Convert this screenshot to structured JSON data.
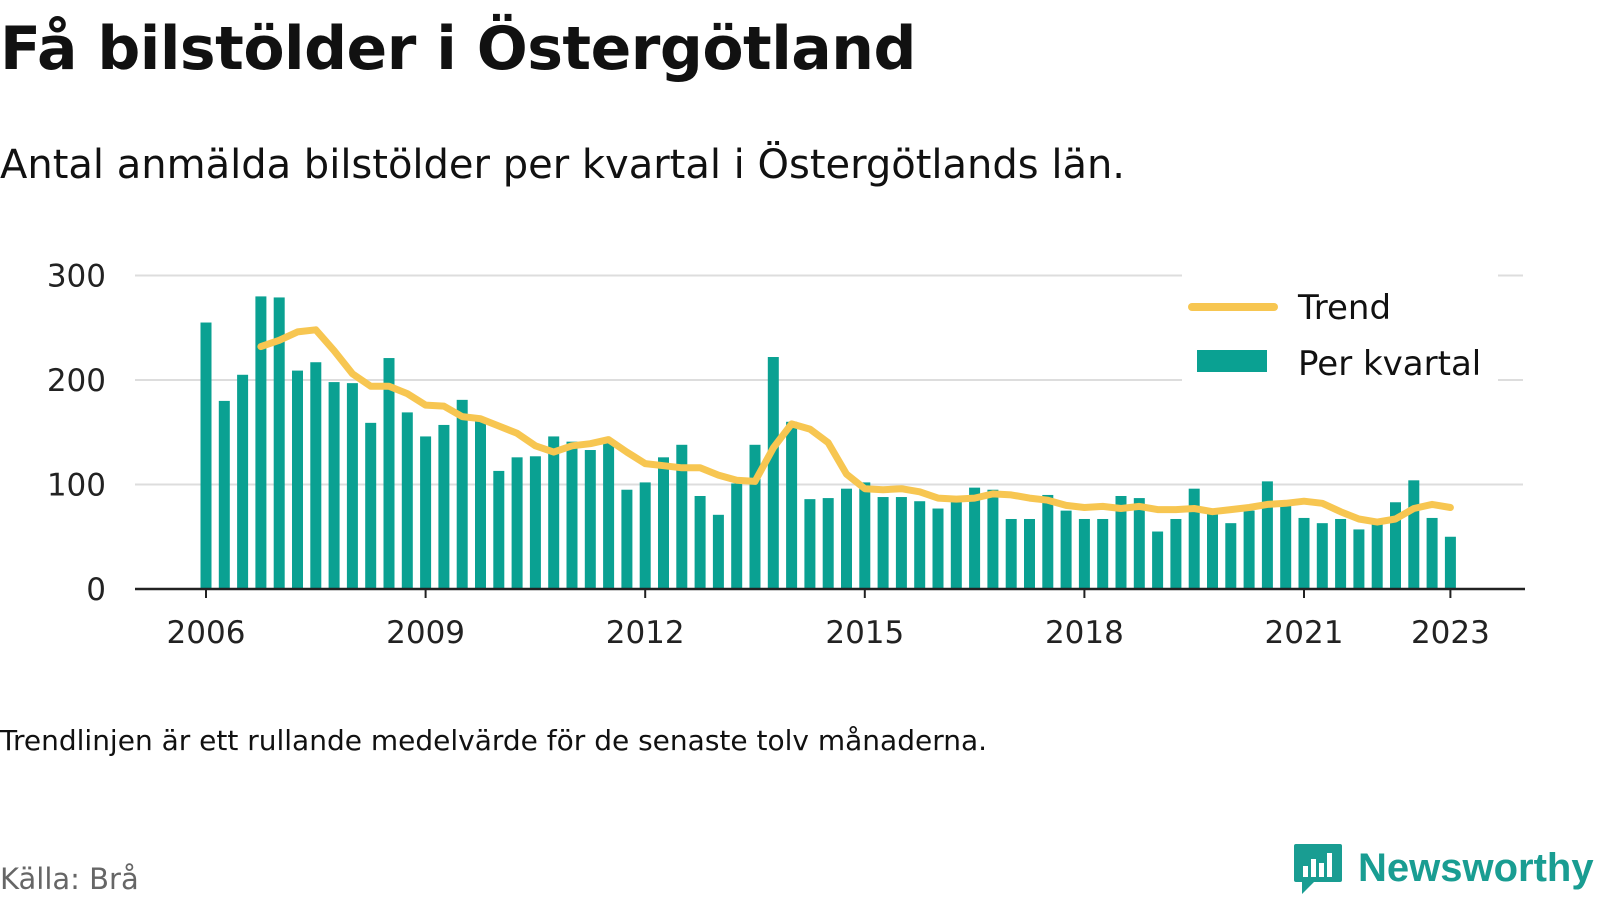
{
  "title": "Få bilstölder i Östergötland",
  "subtitle": "Antal anmälda bilstölder per kvartal i Östergötlands län.",
  "note": "Trendlinjen är ett rullande medelvärde för de senaste tolv månaderna.",
  "source": "Källa: Brå",
  "logo": {
    "text": "Newsworthy",
    "icon": "newsworthy-chart-bubble-icon"
  },
  "colors": {
    "bars": "#0aa192",
    "trend": "#f7c651",
    "grid": "#dddddd",
    "axis": "#222222",
    "logo": "#199d92"
  },
  "chart_data": {
    "type": "bar",
    "ylim": [
      0,
      300
    ],
    "yticks": [
      0,
      100,
      200,
      300
    ],
    "xlabels": [
      {
        "label": "2006",
        "x": 2006.0
      },
      {
        "label": "2009",
        "x": 2009.0
      },
      {
        "label": "2012",
        "x": 2012.0
      },
      {
        "label": "2015",
        "x": 2015.0
      },
      {
        "label": "2018",
        "x": 2018.0
      },
      {
        "label": "2021",
        "x": 2021.0
      },
      {
        "label": "2023",
        "x": 2023.0
      }
    ],
    "grid": true,
    "legend_position": "top-right",
    "series": [
      {
        "name": "Per kvartal",
        "kind": "bar",
        "x": [
          2006.0,
          2006.25,
          2006.5,
          2006.75,
          2007.0,
          2007.25,
          2007.5,
          2007.75,
          2008.0,
          2008.25,
          2008.5,
          2008.75,
          2009.0,
          2009.25,
          2009.5,
          2009.75,
          2010.0,
          2010.25,
          2010.5,
          2010.75,
          2011.0,
          2011.25,
          2011.5,
          2011.75,
          2012.0,
          2012.25,
          2012.5,
          2012.75,
          2013.0,
          2013.25,
          2013.5,
          2013.75,
          2014.0,
          2014.25,
          2014.5,
          2014.75,
          2015.0,
          2015.25,
          2015.5,
          2015.75,
          2016.0,
          2016.25,
          2016.5,
          2016.75,
          2017.0,
          2017.25,
          2017.5,
          2017.75,
          2018.0,
          2018.25,
          2018.5,
          2018.75,
          2019.0,
          2019.25,
          2019.5,
          2019.75,
          2020.0,
          2020.25,
          2020.5,
          2020.75,
          2021.0,
          2021.25,
          2021.5,
          2021.75,
          2022.0,
          2022.25,
          2022.5,
          2022.75,
          2023.0
        ],
        "values": [
          255,
          180,
          205,
          280,
          279,
          209,
          217,
          198,
          197,
          159,
          221,
          169,
          146,
          157,
          181,
          164,
          113,
          126,
          127,
          146,
          141,
          133,
          141,
          95,
          102,
          126,
          138,
          89,
          71,
          101,
          138,
          222,
          160,
          86,
          87,
          96,
          102,
          88,
          88,
          84,
          77,
          84,
          97,
          95,
          67,
          67,
          90,
          75,
          67,
          67,
          89,
          87,
          55,
          67,
          96,
          73,
          63,
          75,
          103,
          82,
          68,
          63,
          67,
          57,
          62,
          83,
          104,
          68,
          50
        ]
      },
      {
        "name": "Trend",
        "kind": "line",
        "x": [
          2006.75,
          2007.0,
          2007.25,
          2007.5,
          2007.75,
          2008.0,
          2008.25,
          2008.5,
          2008.75,
          2009.0,
          2009.25,
          2009.5,
          2009.75,
          2010.0,
          2010.25,
          2010.5,
          2010.75,
          2011.0,
          2011.25,
          2011.5,
          2011.75,
          2012.0,
          2012.25,
          2012.5,
          2012.75,
          2013.0,
          2013.25,
          2013.5,
          2013.75,
          2014.0,
          2014.25,
          2014.5,
          2014.75,
          2015.0,
          2015.25,
          2015.5,
          2015.75,
          2016.0,
          2016.25,
          2016.5,
          2016.75,
          2017.0,
          2017.25,
          2017.5,
          2017.75,
          2018.0,
          2018.25,
          2018.5,
          2018.75,
          2019.0,
          2019.25,
          2019.5,
          2019.75,
          2020.0,
          2020.25,
          2020.5,
          2020.75,
          2021.0,
          2021.25,
          2021.5,
          2021.75,
          2022.0,
          2022.25,
          2022.5,
          2022.75,
          2023.0
        ],
        "values": [
          232,
          238,
          246,
          248,
          228,
          206,
          194,
          194,
          187,
          176,
          175,
          165,
          163,
          156,
          149,
          137,
          131,
          137,
          139,
          143,
          131,
          120,
          118,
          116,
          116,
          109,
          104,
          103,
          135,
          158,
          153,
          140,
          110,
          96,
          95,
          96,
          93,
          87,
          86,
          87,
          91,
          90,
          87,
          85,
          80,
          78,
          79,
          77,
          79,
          76,
          76,
          77,
          74,
          76,
          78,
          81,
          82,
          84,
          82,
          74,
          67,
          64,
          67,
          77,
          81,
          78
        ]
      }
    ]
  }
}
